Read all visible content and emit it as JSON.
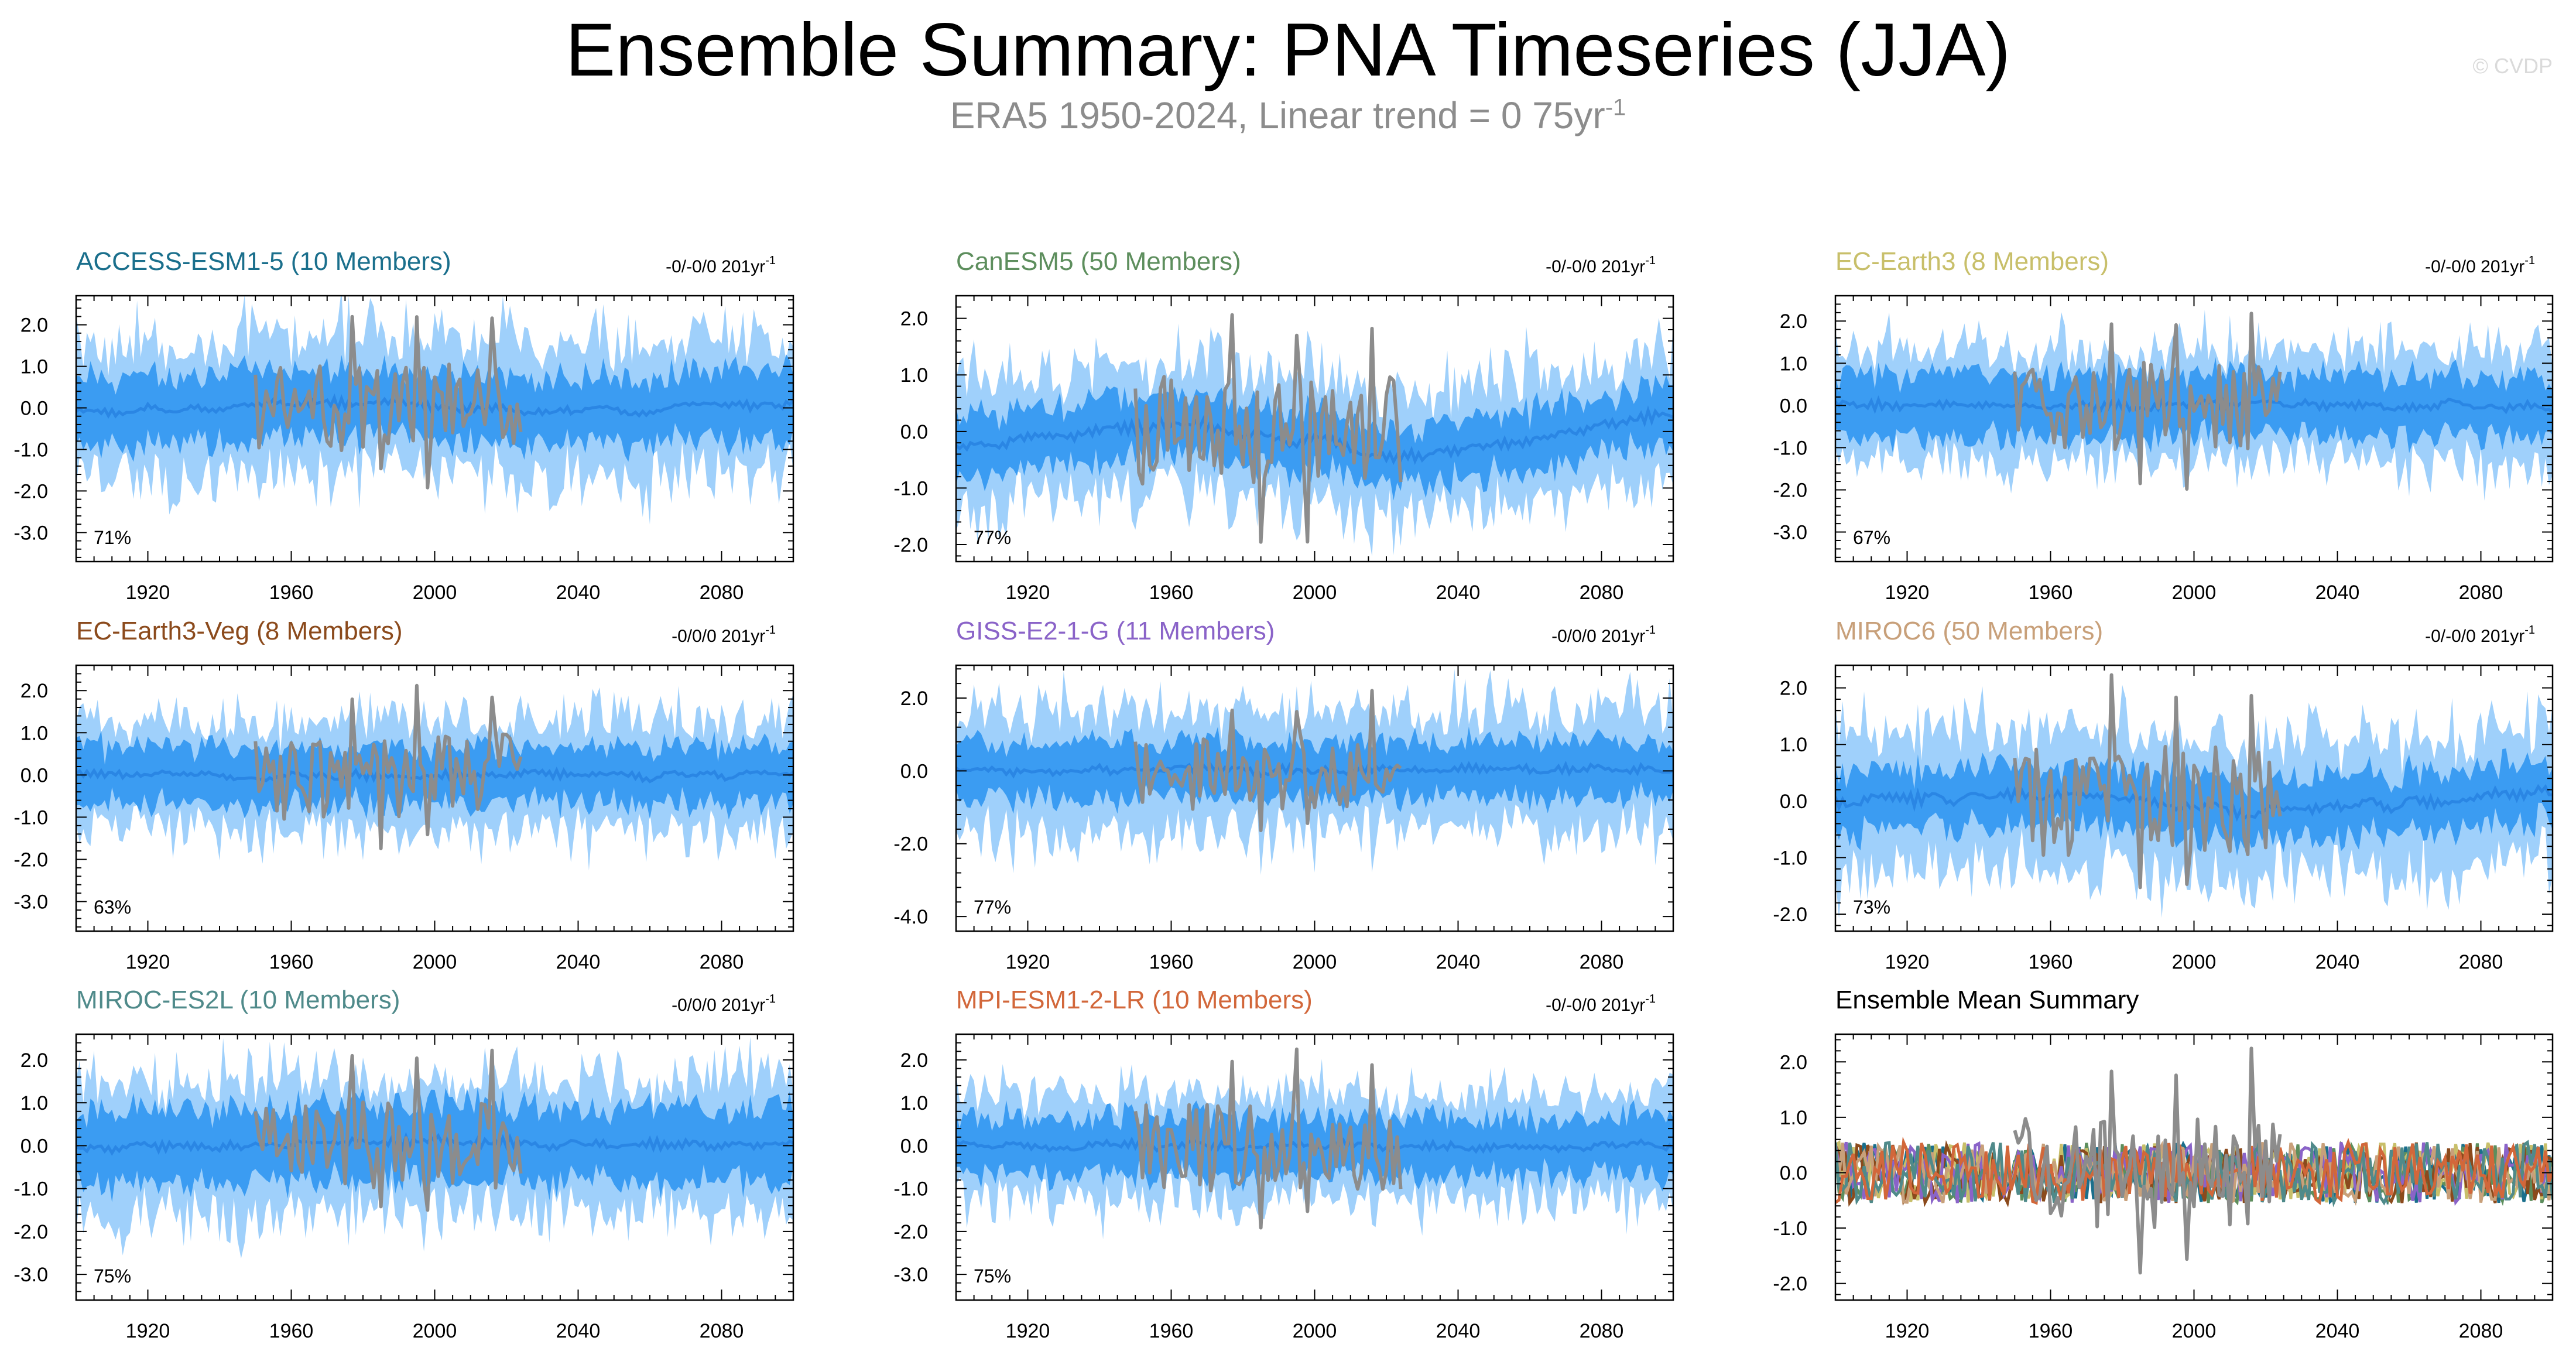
{
  "title": "Ensemble Summary: PNA Timeseries (JJA)",
  "subtitle": {
    "text": "ERA5 1950-2024, Linear trend = 0 75yr",
    "sup": "-1"
  },
  "watermark": "© CVDP",
  "colors": {
    "band_outer": "#9fd0fb",
    "band_inner": "#3b9cf2",
    "ens_mean": "#2a86e4",
    "observed": "#8c8c8c",
    "axis": "#000000"
  },
  "chart_data": [
    {
      "type": "area",
      "name": "ACCESS-ESM1-5 (10 Members)",
      "color": "#1a6f8c",
      "trend": "-0/-0/0 201yr",
      "trend_sup": "-1",
      "ylim": [
        -3.7,
        2.7
      ],
      "yticks": [
        2.0,
        1.0,
        0.0,
        -1.0,
        -2.0,
        -3.0
      ],
      "ytick_labels": [
        "2.0",
        "1.0",
        "0.0",
        "-1.0",
        "-2.0",
        "-3.0"
      ],
      "xlim": [
        1900,
        2100
      ],
      "xticks": [
        1920,
        1960,
        2000,
        2040,
        2080
      ],
      "xtick_labels": [
        "1920",
        "1960",
        "2000",
        "2040",
        "2080"
      ],
      "percent": "71%",
      "mean_drift": [
        [
          1900,
          -0.1
        ],
        [
          1980,
          0.15
        ],
        [
          2030,
          -0.1
        ],
        [
          2100,
          0.1
        ]
      ],
      "outer_width": 1.6,
      "inner_width": 0.85,
      "obs_amp": 1.0
    },
    {
      "type": "area",
      "name": "CanESM5 (50 Members)",
      "color": "#5d8e5d",
      "trend": "-0/-0/0 201yr",
      "trend_sup": "-1",
      "ylim": [
        -2.3,
        2.4
      ],
      "yticks": [
        2.0,
        1.0,
        0.0,
        -1.0,
        -2.0
      ],
      "ytick_labels": [
        "2.0",
        "1.0",
        "0.0",
        "-1.0",
        "-2.0"
      ],
      "xlim": [
        1900,
        2100
      ],
      "xticks": [
        1920,
        1960,
        2000,
        2040,
        2080
      ],
      "xtick_labels": [
        "1920",
        "1960",
        "2000",
        "2040",
        "2080"
      ],
      "percent": "77%",
      "mean_drift": [
        [
          1900,
          -0.3
        ],
        [
          1960,
          0.15
        ],
        [
          2030,
          -0.45
        ],
        [
          2100,
          0.3
        ]
      ],
      "outer_width": 1.15,
      "inner_width": 0.55,
      "obs_amp": 0.95
    },
    {
      "type": "area",
      "name": "EC-Earth3 (8 Members)",
      "color": "#c8bf6a",
      "trend": "-0/-0/0 201yr",
      "trend_sup": "-1",
      "ylim": [
        -3.7,
        2.6
      ],
      "yticks": [
        2.0,
        1.0,
        0.0,
        -1.0,
        -2.0,
        -3.0
      ],
      "ytick_labels": [
        "2.0",
        "1.0",
        "0.0",
        "-1.0",
        "-2.0",
        "-3.0"
      ],
      "xlim": [
        1900,
        2100
      ],
      "xticks": [
        1920,
        1960,
        2000,
        2040,
        2080
      ],
      "xtick_labels": [
        "1920",
        "1960",
        "2000",
        "2040",
        "2080"
      ],
      "percent": "67%",
      "mean_drift": [
        [
          1900,
          0.0
        ],
        [
          2100,
          0.0
        ]
      ],
      "outer_width": 1.35,
      "inner_width": 0.75,
      "obs_amp": 1.0
    },
    {
      "type": "area",
      "name": "EC-Earth3-Veg (8 Members)",
      "color": "#8b4a1c",
      "trend": "-0/0/0 201yr",
      "trend_sup": "-1",
      "ylim": [
        -3.7,
        2.6
      ],
      "yticks": [
        2.0,
        1.0,
        0.0,
        -1.0,
        -2.0,
        -3.0
      ],
      "ytick_labels": [
        "2.0",
        "1.0",
        "0.0",
        "-1.0",
        "-2.0",
        "-3.0"
      ],
      "xlim": [
        1900,
        2100
      ],
      "xticks": [
        1920,
        1960,
        2000,
        2040,
        2080
      ],
      "xtick_labels": [
        "1920",
        "1960",
        "2000",
        "2040",
        "2080"
      ],
      "percent": "63%",
      "mean_drift": [
        [
          1900,
          0.0
        ],
        [
          2100,
          0.0
        ]
      ],
      "outer_width": 1.3,
      "inner_width": 0.7,
      "obs_amp": 1.0
    },
    {
      "type": "area",
      "name": "GISS-E2-1-G (11 Members)",
      "color": "#8a63c8",
      "trend": "-0/0/0 201yr",
      "trend_sup": "-1",
      "ylim": [
        -4.4,
        2.9
      ],
      "yticks": [
        2.0,
        0.0,
        -2.0,
        -4.0
      ],
      "ytick_labels": [
        "2.0",
        "0.0",
        "-2.0",
        "-4.0"
      ],
      "xlim": [
        1900,
        2100
      ],
      "xticks": [
        1920,
        1960,
        2000,
        2040,
        2080
      ],
      "xtick_labels": [
        "1920",
        "1960",
        "2000",
        "2040",
        "2080"
      ],
      "percent": "77%",
      "mean_drift": [
        [
          1900,
          0.0
        ],
        [
          2100,
          0.05
        ]
      ],
      "outer_width": 1.7,
      "inner_width": 0.8,
      "obs_amp": 1.0
    },
    {
      "type": "area",
      "name": "MIROC6 (50 Members)",
      "color": "#c8a07a",
      "trend": "-0/-0/0 201yr",
      "trend_sup": "-1",
      "ylim": [
        -2.3,
        2.4
      ],
      "yticks": [
        2.0,
        1.0,
        0.0,
        -1.0,
        -2.0
      ],
      "ytick_labels": [
        "2.0",
        "1.0",
        "0.0",
        "-1.0",
        "-2.0"
      ],
      "xlim": [
        1900,
        2100
      ],
      "xticks": [
        1920,
        1960,
        2000,
        2040,
        2080
      ],
      "xtick_labels": [
        "1920",
        "1960",
        "2000",
        "2040",
        "2080"
      ],
      "percent": "73%",
      "mean_drift": [
        [
          1900,
          -0.05
        ],
        [
          1960,
          0.1
        ],
        [
          2020,
          -0.2
        ],
        [
          2100,
          0.2
        ]
      ],
      "outer_width": 1.2,
      "inner_width": 0.55,
      "obs_amp": 0.95
    },
    {
      "type": "area",
      "name": "MIROC-ES2L (10 Members)",
      "color": "#4f8a8a",
      "trend": "-0/0/0 201yr",
      "trend_sup": "-1",
      "ylim": [
        -3.6,
        2.6
      ],
      "yticks": [
        2.0,
        1.0,
        0.0,
        -1.0,
        -2.0,
        -3.0
      ],
      "ytick_labels": [
        "2.0",
        "1.0",
        "0.0",
        "-1.0",
        "-2.0",
        "-3.0"
      ],
      "xlim": [
        1900,
        2100
      ],
      "xticks": [
        1920,
        1960,
        2000,
        2040,
        2080
      ],
      "xtick_labels": [
        "1920",
        "1960",
        "2000",
        "2040",
        "2080"
      ],
      "percent": "75%",
      "mean_drift": [
        [
          1900,
          -0.1
        ],
        [
          1980,
          0.1
        ],
        [
          2100,
          0.0
        ]
      ],
      "outer_width": 1.55,
      "inner_width": 0.9,
      "obs_amp": 1.0
    },
    {
      "type": "area",
      "name": "MPI-ESM1-2-LR (10 Members)",
      "color": "#d2673a",
      "trend": "-0/-0/0 201yr",
      "trend_sup": "-1",
      "ylim": [
        -3.6,
        2.6
      ],
      "yticks": [
        2.0,
        1.0,
        0.0,
        -1.0,
        -2.0,
        -3.0
      ],
      "ytick_labels": [
        "2.0",
        "1.0",
        "0.0",
        "-1.0",
        "-2.0",
        "-3.0"
      ],
      "xlim": [
        1900,
        2100
      ],
      "xticks": [
        1920,
        1960,
        2000,
        2040,
        2080
      ],
      "xtick_labels": [
        "1920",
        "1960",
        "2000",
        "2040",
        "2080"
      ],
      "percent": "75%",
      "mean_drift": [
        [
          1900,
          0.0
        ],
        [
          2100,
          0.0
        ]
      ],
      "outer_width": 1.25,
      "inner_width": 0.7,
      "obs_amp": 1.0
    },
    {
      "type": "line",
      "name": "Ensemble Mean Summary",
      "color": "#000000",
      "ylim": [
        -2.3,
        2.5
      ],
      "yticks": [
        2.0,
        1.0,
        0.0,
        -1.0,
        -2.0
      ],
      "ytick_labels": [
        "2.0",
        "1.0",
        "0.0",
        "-1.0",
        "-2.0"
      ],
      "xlim": [
        1900,
        2100
      ],
      "xticks": [
        1920,
        1960,
        2000,
        2040,
        2080
      ],
      "xtick_labels": [
        "1920",
        "1960",
        "2000",
        "2040",
        "2080"
      ],
      "series_colors": [
        "#1a6f8c",
        "#5d8e5d",
        "#c8bf6a",
        "#8b4a1c",
        "#8a63c8",
        "#c8a07a",
        "#4f8a8a",
        "#d2673a"
      ],
      "obs_amp": 0.95
    }
  ]
}
